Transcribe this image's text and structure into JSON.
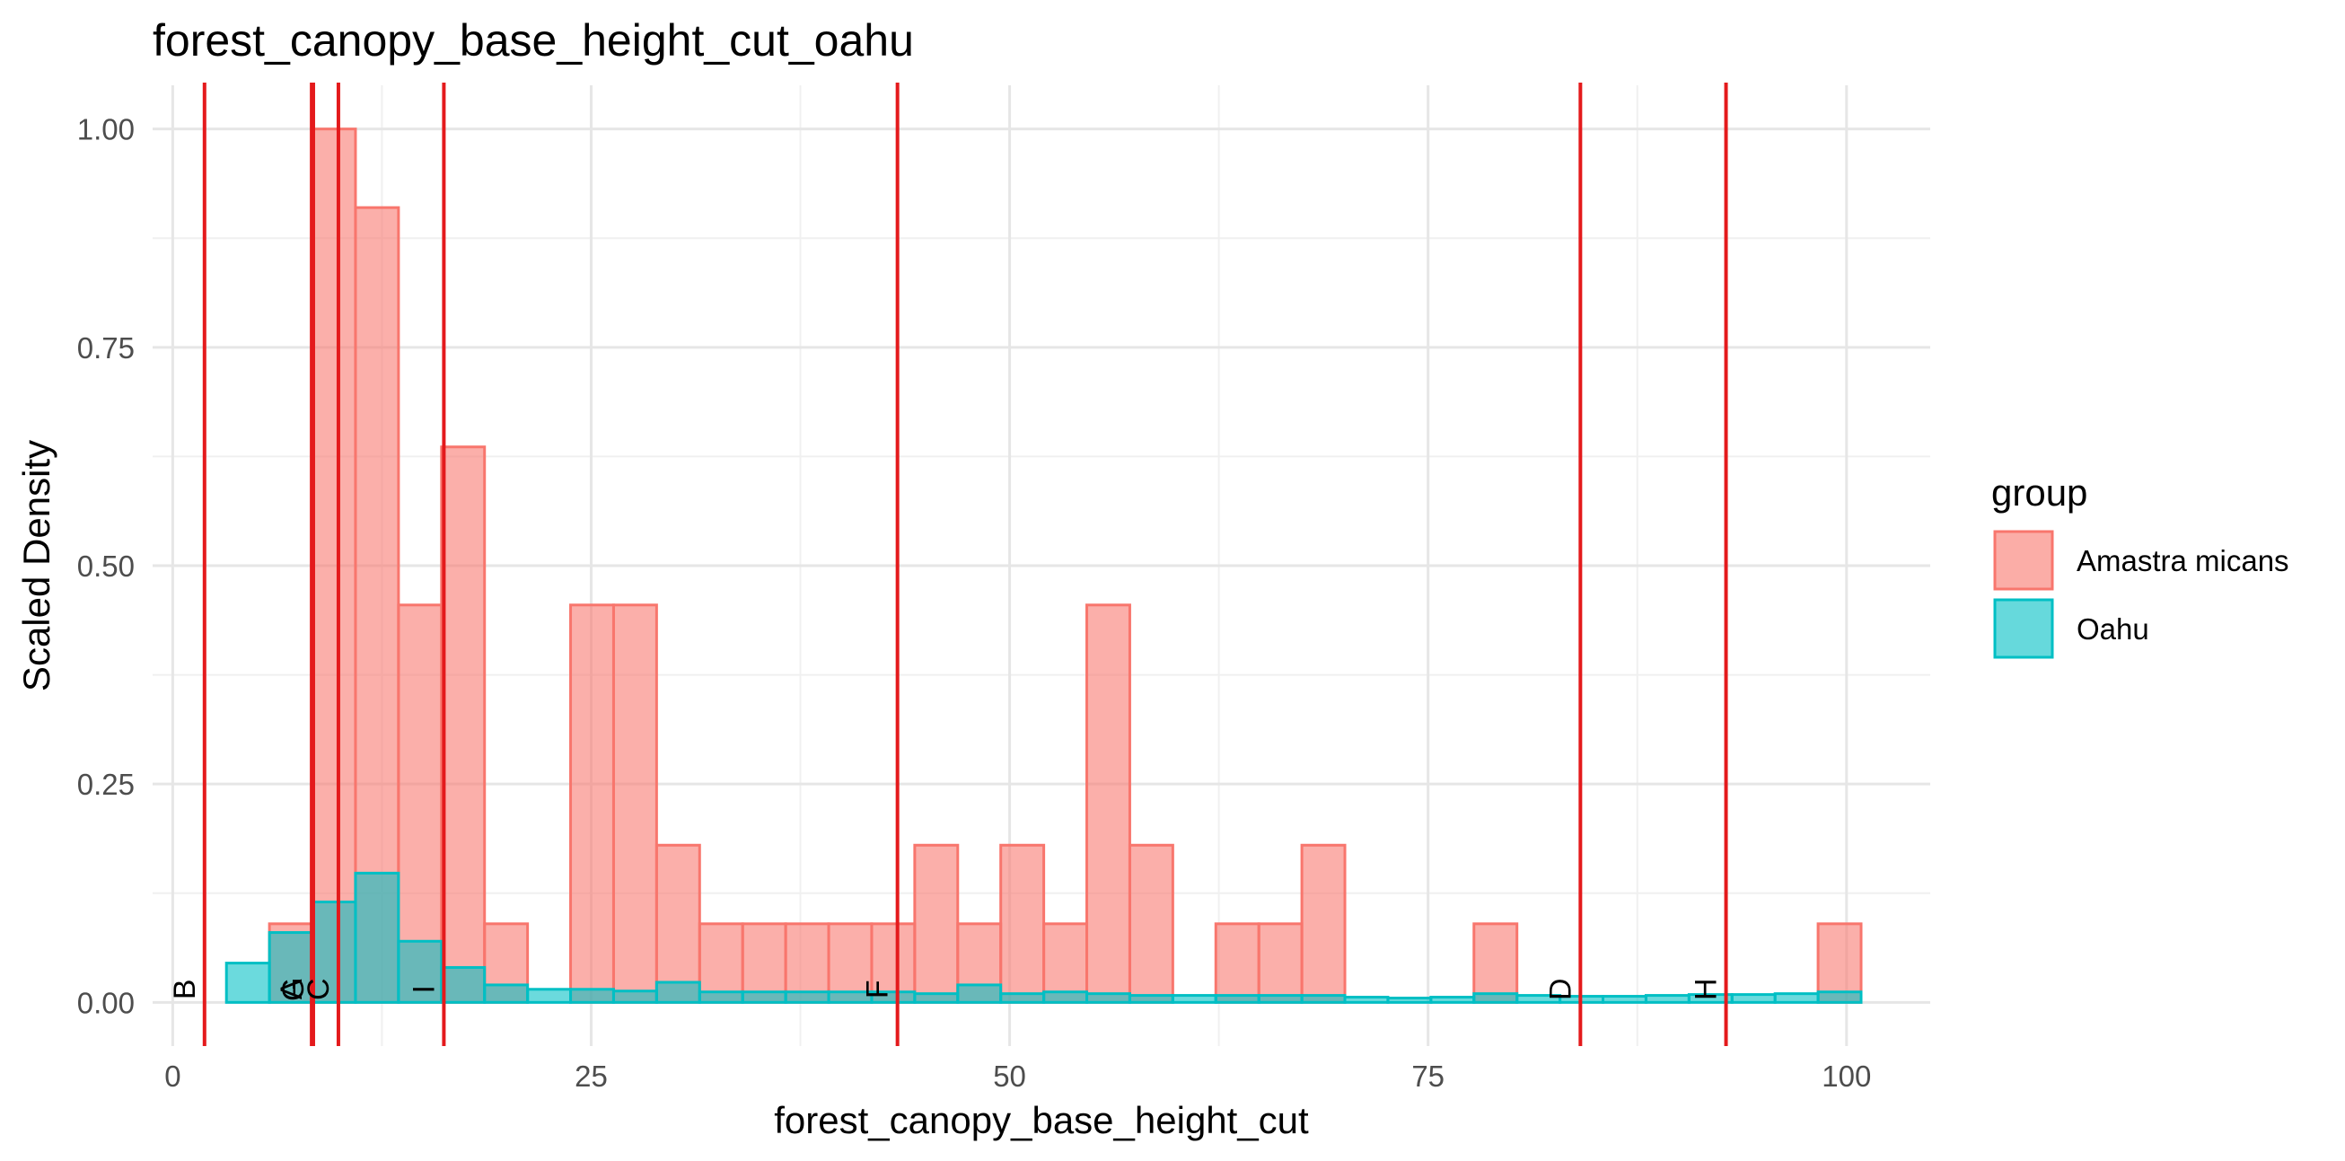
{
  "chart_data": {
    "type": "bar",
    "title": "forest_canopy_base_height_cut_oahu",
    "xlabel": "forest_canopy_base_height_cut",
    "ylabel": "Scaled Density",
    "xlim": [
      -1.2,
      105
    ],
    "ylim": [
      -0.05,
      1.05
    ],
    "x_ticks": [
      0,
      25,
      50,
      75,
      100
    ],
    "x_tick_labels": [
      "0",
      "25",
      "50",
      "75",
      "100"
    ],
    "y_ticks": [
      0,
      0.25,
      0.5,
      0.75,
      1.0
    ],
    "y_tick_labels": [
      "0.00",
      "0.25",
      "0.50",
      "0.75",
      "1.00"
    ],
    "grid": true,
    "bin_width": 2.57,
    "bin_start": 0.64,
    "legend": {
      "title": "group",
      "position": "right"
    },
    "series": [
      {
        "name": "Amastra micans",
        "fill": "#F8766D",
        "values": [
          0,
          0,
          0.09,
          1.0,
          0.91,
          0.455,
          0.636,
          0.09,
          0,
          0.455,
          0.455,
          0.18,
          0.09,
          0.09,
          0.09,
          0.09,
          0.09,
          0.18,
          0.09,
          0.18,
          0.09,
          0.455,
          0.18,
          0,
          0.09,
          0.09,
          0.18,
          0,
          0,
          0,
          0.09,
          0,
          0,
          0,
          0,
          0,
          0,
          0,
          0.09
        ]
      },
      {
        "name": "Oahu",
        "fill": "#00BFC4",
        "values": [
          0,
          0.045,
          0.08,
          0.115,
          0.148,
          0.07,
          0.04,
          0.02,
          0.015,
          0.015,
          0.013,
          0.023,
          0.012,
          0.012,
          0.012,
          0.012,
          0.012,
          0.01,
          0.02,
          0.01,
          0.012,
          0.01,
          0.008,
          0.008,
          0.008,
          0.008,
          0.008,
          0.006,
          0.005,
          0.006,
          0.01,
          0.008,
          0.007,
          0.007,
          0.008,
          0.009,
          0.009,
          0.01,
          0.012
        ]
      }
    ],
    "vlines": [
      {
        "x": 1.9,
        "label": "B"
      },
      {
        "x": 8.3,
        "label": "A"
      },
      {
        "x": 8.4,
        "label": "G"
      },
      {
        "x": 9.9,
        "label": "C"
      },
      {
        "x": 16.2,
        "label": "I"
      },
      {
        "x": 43.3,
        "label": "F"
      },
      {
        "x": 84.1,
        "label": "D"
      },
      {
        "x": 92.8,
        "label": "H"
      }
    ],
    "vline_color": "#E41A1C"
  }
}
